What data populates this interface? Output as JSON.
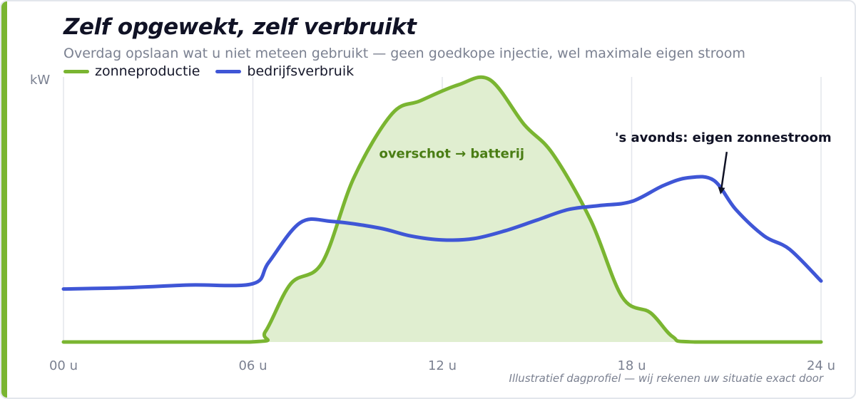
{
  "title": "Zelf opgewekt, zelf verbruikt",
  "subtitle": "Overdag opslaan wat u niet meteen gebruikt — geen goedkope injectie, wel maximale eigen stroom",
  "footnote": "Illustratief dagprofiel — wij rekenen uw situatie exact door",
  "colors": {
    "accent": "#7ab531",
    "production": "#7ab531",
    "production_fill": "#e0eed0",
    "consumption": "#3f56d6",
    "annotation_green": "#4a7d14",
    "annotation_dark": "#101225"
  },
  "chart_data": {
    "type": "line",
    "ylabel": "kW",
    "xlabel": "",
    "x_ticks": [
      "00 u",
      "06 u",
      "12 u",
      "18 u",
      "24 u"
    ],
    "x_tick_values": [
      0,
      6,
      12,
      18,
      24
    ],
    "xlim": [
      0,
      24
    ],
    "ylim": [
      0,
      1
    ],
    "grid": "vertical",
    "legend_placement": "top-left",
    "series": [
      {
        "name": "zonneproductie",
        "color": "#7ab531",
        "filled": true,
        "points": [
          [
            0,
            0
          ],
          [
            5.9,
            0
          ],
          [
            6.4,
            0.04
          ],
          [
            7.2,
            0.22
          ],
          [
            8.2,
            0.3
          ],
          [
            9.2,
            0.62
          ],
          [
            10.4,
            0.86
          ],
          [
            11.3,
            0.91
          ],
          [
            12.5,
            0.97
          ],
          [
            13.5,
            0.99
          ],
          [
            14.6,
            0.82
          ],
          [
            15.5,
            0.71
          ],
          [
            16.7,
            0.46
          ],
          [
            17.7,
            0.17
          ],
          [
            18.6,
            0.11
          ],
          [
            19.3,
            0.02
          ],
          [
            20,
            0
          ],
          [
            24,
            0
          ]
        ]
      },
      {
        "name": "bedrijfsverbruik",
        "color": "#3f56d6",
        "filled": false,
        "points": [
          [
            0,
            0.2
          ],
          [
            2,
            0.205
          ],
          [
            4,
            0.215
          ],
          [
            6,
            0.22
          ],
          [
            6.5,
            0.3
          ],
          [
            7.5,
            0.45
          ],
          [
            8.5,
            0.455
          ],
          [
            10,
            0.43
          ],
          [
            11,
            0.4
          ],
          [
            12,
            0.385
          ],
          [
            13,
            0.39
          ],
          [
            14,
            0.42
          ],
          [
            15,
            0.46
          ],
          [
            16,
            0.5
          ],
          [
            17,
            0.515
          ],
          [
            18,
            0.53
          ],
          [
            19,
            0.59
          ],
          [
            19.8,
            0.62
          ],
          [
            20.6,
            0.61
          ],
          [
            21.3,
            0.5
          ],
          [
            22.2,
            0.4
          ],
          [
            23,
            0.35
          ],
          [
            24,
            0.23
          ]
        ]
      }
    ],
    "annotations": [
      {
        "text": "overschot → batterij",
        "x": 12.3,
        "y": 0.695,
        "style": "green"
      },
      {
        "text": "'s avonds: eigen zonnestroom",
        "x": 20.9,
        "y": 0.755,
        "style": "dark",
        "arrow_to": [
          20.9,
          0.57
        ]
      }
    ]
  }
}
